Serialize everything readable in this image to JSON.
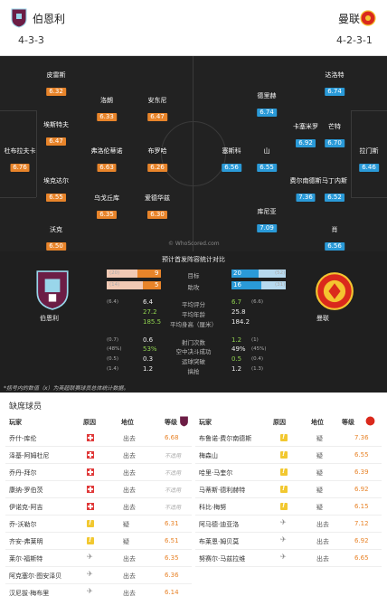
{
  "header": {
    "home_name": "伯恩利",
    "away_name": "曼联",
    "home_formation": "4-3-3",
    "away_formation": "4-2-3-1"
  },
  "pitch": {
    "home": [
      {
        "name": "皮雷斯",
        "rating": "6.32"
      },
      {
        "name": "洛朗",
        "rating": "6.33"
      },
      {
        "name": "安东尼",
        "rating": "6.47"
      },
      {
        "name": "埃斯特夫",
        "rating": "6.47"
      },
      {
        "name": "杜布拉夫卡",
        "rating": "6.76"
      },
      {
        "name": "弗洛伦蒂诺",
        "rating": "6.63"
      },
      {
        "name": "布罗哈",
        "rating": "6.26"
      },
      {
        "name": "埃克达尔",
        "rating": "6.55"
      },
      {
        "name": "乌戈丘库",
        "rating": "6.35"
      },
      {
        "name": "爱德华兹",
        "rating": "6.30"
      },
      {
        "name": "沃克",
        "rating": "6.50"
      }
    ],
    "away": [
      {
        "name": "达洛特",
        "rating": "6.74"
      },
      {
        "name": "德里赫",
        "rating": "6.74"
      },
      {
        "name": "卡塞米罗",
        "rating": "6.92"
      },
      {
        "name": "芒特",
        "rating": "6.70"
      },
      {
        "name": "塞斯科",
        "rating": "6.56"
      },
      {
        "name": "山",
        "rating": "6.55"
      },
      {
        "name": "拉门斯",
        "rating": "6.46"
      },
      {
        "name": "费尔南德斯",
        "rating": "7.36"
      },
      {
        "name": "马丁内斯",
        "rating": "6.52"
      },
      {
        "name": "库尼亚",
        "rating": "7.09"
      },
      {
        "name": "肖",
        "rating": "6.56"
      }
    ],
    "watermark": "© WhoScored.com"
  },
  "comparison": {
    "title": "预计首发阵容统计对比",
    "home_label": "伯恩利",
    "away_label": "曼联",
    "bars": [
      {
        "label": "目标",
        "home": "9",
        "home_paren": "(20)",
        "away": "20",
        "away_paren": "(52)",
        "home_share": 0.31,
        "away_share": 0.69
      },
      {
        "label": "助攻",
        "home": "5",
        "home_paren": "(14)",
        "away": "16",
        "away_paren": "(31)",
        "home_share": 0.24,
        "away_share": 0.76
      }
    ],
    "rows": [
      {
        "label": "平均评分",
        "home": "6.4",
        "home_paren": "(6.4)",
        "away": "6.7",
        "away_paren": "(6.6)",
        "win": "away"
      },
      {
        "label": "平均年龄",
        "home": "27.2",
        "home_paren": "",
        "away": "25.8",
        "away_paren": "",
        "win": "home"
      },
      {
        "label": "平均身高（厘米）",
        "home": "185.5",
        "home_paren": "",
        "away": "184.2",
        "away_paren": "",
        "win": "home"
      },
      {
        "label": "射门次数",
        "home": "0.6",
        "home_paren": "(0.7)",
        "away": "1.2",
        "away_paren": "(1)",
        "win": "away"
      },
      {
        "label": "空中决斗成功",
        "home": "53%",
        "home_paren": "(48%)",
        "away": "49%",
        "away_paren": "(45%)",
        "win": "home"
      },
      {
        "label": "运球突破",
        "home": "0.3",
        "home_paren": "(0.5)",
        "away": "0.5",
        "away_paren": "(0.4)",
        "win": "away"
      },
      {
        "label": "搞抢",
        "home": "1.2",
        "home_paren": "(1.4)",
        "away": "1.2",
        "away_paren": "(1.3)",
        "win": "none"
      }
    ],
    "footnote": "*括号内的数值（x）为英超联赛球员总体统计数据。"
  },
  "absences": {
    "title": "缺席球员",
    "headers": {
      "player": "玩家",
      "reason": "原因",
      "position": "地位",
      "rating": "等级"
    },
    "home": [
      {
        "player": "乔什-库伦",
        "icon": "injury",
        "status": "出去",
        "rating": "6.68"
      },
      {
        "player": "泽基-阿姆杜尼",
        "icon": "injury",
        "status": "出去",
        "rating": "不适用"
      },
      {
        "player": "乔丹-拜尔",
        "icon": "injury",
        "status": "出去",
        "rating": "不适用"
      },
      {
        "player": "康纳-罗伯茨",
        "icon": "injury",
        "status": "出去",
        "rating": "不适用"
      },
      {
        "player": "伊诺克-阿吉",
        "icon": "injury",
        "status": "出去",
        "rating": "不适用"
      },
      {
        "player": "乔-沃勒尔",
        "icon": "doubt",
        "status": "疑",
        "rating": "6.31"
      },
      {
        "player": "齐安-弗莱明",
        "icon": "doubt",
        "status": "疑",
        "rating": "6.51"
      },
      {
        "player": "莱尔·福斯特",
        "icon": "travel",
        "status": "出去",
        "rating": "6.35"
      },
      {
        "player": "阿克塞尔·图安泽贝",
        "icon": "travel",
        "status": "出去",
        "rating": "6.36"
      },
      {
        "player": "汉尼拔·梅布里",
        "icon": "travel",
        "status": "出去",
        "rating": "6.14"
      }
    ],
    "away": [
      {
        "player": "布鲁诺·费尔南德斯",
        "icon": "doubt",
        "status": "疑",
        "rating": "7.36"
      },
      {
        "player": "梅森山",
        "icon": "doubt",
        "status": "疑",
        "rating": "6.55"
      },
      {
        "player": "哈里·马奎尔",
        "icon": "doubt",
        "status": "疑",
        "rating": "6.39"
      },
      {
        "player": "马蒂斯·德利赫特",
        "icon": "doubt",
        "status": "疑",
        "rating": "6.92"
      },
      {
        "player": "科比·梅努",
        "icon": "doubt",
        "status": "疑",
        "rating": "6.15"
      },
      {
        "player": "阿马德·迪亚洛",
        "icon": "travel",
        "status": "出去",
        "rating": "7.12"
      },
      {
        "player": "布莱恩·姆贝莫",
        "icon": "travel",
        "status": "出去",
        "rating": "6.92"
      },
      {
        "player": "努赛尔·马兹拉维",
        "icon": "travel",
        "status": "出去",
        "rating": "6.65"
      }
    ]
  },
  "colors": {
    "home_accent": "#e8842a",
    "away_accent": "#2a9ad8",
    "home_crest": "#6c1d45",
    "away_crest": "#da291c"
  }
}
